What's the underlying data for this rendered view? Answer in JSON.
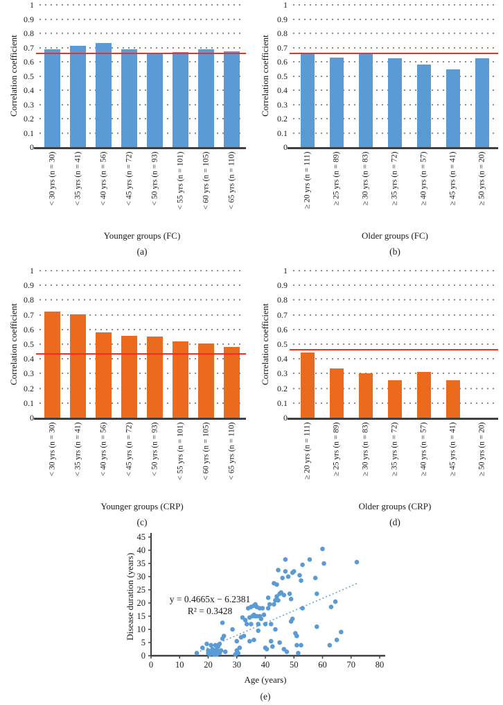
{
  "figure_caption_labels": [
    "(a)",
    "(b)",
    "(c)",
    "(d)",
    "(e)"
  ],
  "colors": {
    "blue_bar": "#5B9BD5",
    "orange_bar": "#EC6A1E",
    "reference_line": "#FB2B20",
    "axis": "#3F3F3F",
    "grid_dot": "#8C8C8C",
    "text": "#1A1A1A",
    "scatter_point": "#5B9BD5",
    "trendline": "#5B9BD5"
  },
  "chart_data": [
    {
      "panel": "a",
      "type": "bar",
      "xlabel": "Younger groups (FC)",
      "ylabel": "Correlation coefficient",
      "caption": "(a)",
      "ylim": [
        0,
        1
      ],
      "yticks": [
        "0",
        "0.1",
        "0.2",
        "0.3",
        "0.4",
        "0.5",
        "0.6",
        "0.7",
        "0.8",
        "0.9",
        "1"
      ],
      "grid": "dotted",
      "bar_color": "#5B9BD5",
      "categories": [
        "< 30 yrs (n = 30)",
        "< 35 yrs (n = 41)",
        "< 40 yrs (n = 56)",
        "< 45 yrs (n = 72)",
        "< 50 yrs (n = 93)",
        "< 55 yrs (n = 101)",
        "< 60 yrs (n = 105)",
        "< 65 yrs (n = 110)"
      ],
      "values": [
        0.69,
        0.71,
        0.73,
        0.69,
        0.665,
        0.67,
        0.69,
        0.675
      ],
      "reference_line": 0.66
    },
    {
      "panel": "b",
      "type": "bar",
      "xlabel": "Older groups (FC)",
      "ylabel": "Correlation coefficient",
      "caption": "(b)",
      "ylim": [
        0,
        1
      ],
      "yticks": [
        "0",
        "0.1",
        "0.2",
        "0.3",
        "0.4",
        "0.5",
        "0.6",
        "0.7",
        "0.8",
        "0.9",
        "1"
      ],
      "grid": "dotted",
      "bar_color": "#5B9BD5",
      "categories": [
        "≥ 20 yrs (n = 111)",
        "≥ 25 yrs (n = 89)",
        "≥ 30 yrs (n = 83)",
        "≥ 35 yrs (n = 72)",
        "≥ 40 yrs (n = 57)",
        "≥ 45 yrs (n = 41)",
        "≥ 50 yrs (n = 20)"
      ],
      "values": [
        0.66,
        0.63,
        0.66,
        0.625,
        0.58,
        0.545,
        0.625
      ],
      "reference_line": 0.66
    },
    {
      "panel": "c",
      "type": "bar",
      "xlabel": "Younger groups (CRP)",
      "ylabel": "Correlation coefficient",
      "caption": "(c)",
      "ylim": [
        0,
        1
      ],
      "yticks": [
        "0",
        "0.1",
        "0.2",
        "0.3",
        "0.4",
        "0.5",
        "0.6",
        "0.7",
        "0.8",
        "0.9",
        "1"
      ],
      "grid": "dotted",
      "bar_color": "#EC6A1E",
      "categories": [
        "< 30 yrs (n = 30)",
        "< 35 yrs (n = 41)",
        "< 40 yrs (n = 56)",
        "< 45 yrs (n = 72)",
        "< 50 yrs (n = 93)",
        "< 55 yrs (n = 101)",
        "< 60 yrs (n = 105)",
        "< 65 yrs (n = 110)"
      ],
      "values": [
        0.72,
        0.705,
        0.58,
        0.555,
        0.55,
        0.52,
        0.505,
        0.48
      ],
      "reference_line": 0.435
    },
    {
      "panel": "d",
      "type": "bar",
      "xlabel": "Older groups (CRP)",
      "ylabel": "Correlation coefficient",
      "caption": "(d)",
      "ylim": [
        0,
        1
      ],
      "yticks": [
        "0",
        "0.1",
        "0.2",
        "0.3",
        "0.4",
        "0.5",
        "0.6",
        "0.7",
        "0.8",
        "0.9",
        "1"
      ],
      "grid": "dotted",
      "bar_color": "#EC6A1E",
      "categories": [
        "≥ 20 yrs (n = 111)",
        "≥ 25 yrs (n = 89)",
        "≥ 30 yrs (n = 83)",
        "≥ 35 yrs (n = 72)",
        "≥ 40 yrs (n = 57)",
        "≥ 45 yrs (n = 41)",
        "≥ 50 yrs (n = 20)"
      ],
      "values": [
        0.445,
        0.335,
        0.3,
        0.255,
        0.31,
        0.255,
        0
      ],
      "reference_line": 0.46
    },
    {
      "panel": "e",
      "type": "scatter",
      "xlabel": "Age (years)",
      "ylabel": "Disease duration (years)",
      "caption": "(e)",
      "xlim": [
        0,
        80
      ],
      "ylim": [
        0,
        45
      ],
      "xticks": [
        "0",
        "10",
        "20",
        "30",
        "40",
        "50",
        "60",
        "70",
        "80"
      ],
      "yticks": [
        "0",
        "5",
        "10",
        "15",
        "20",
        "25",
        "30",
        "35",
        "40",
        "45"
      ],
      "grid": "off",
      "point_color": "#5B9BD5",
      "annotation_line1": "y = 0.4665x − 6.2381",
      "annotation_line2": "R² = 0.3428",
      "trendline": {
        "x_start": 16,
        "y_start": 1.2,
        "x_end": 72.5,
        "y_end": 27.6,
        "style": "dotted"
      },
      "points": [
        [
          16,
          1
        ],
        [
          18,
          3
        ],
        [
          19.5,
          4.5
        ],
        [
          20,
          2
        ],
        [
          20,
          1
        ],
        [
          20.5,
          0.5
        ],
        [
          21,
          4
        ],
        [
          21,
          1
        ],
        [
          21.5,
          2.5
        ],
        [
          22,
          1
        ],
        [
          22,
          0.5
        ],
        [
          22.5,
          4
        ],
        [
          22.5,
          2
        ],
        [
          22.5,
          1
        ],
        [
          23,
          2.5
        ],
        [
          23,
          0.5
        ],
        [
          23.5,
          1.5
        ],
        [
          23.5,
          3.5
        ],
        [
          24,
          4.5
        ],
        [
          24,
          1
        ],
        [
          24.5,
          2
        ],
        [
          25,
          6.5
        ],
        [
          25,
          12.5
        ],
        [
          25.5,
          7.5
        ],
        [
          26,
          1.5
        ],
        [
          28.5,
          10
        ],
        [
          29.5,
          0.5
        ],
        [
          30,
          2
        ],
        [
          30,
          5.5
        ],
        [
          30.5,
          1
        ],
        [
          31,
          3
        ],
        [
          31.5,
          7
        ],
        [
          32,
          14.5
        ],
        [
          32.5,
          7.5
        ],
        [
          33,
          13.5
        ],
        [
          33.5,
          12
        ],
        [
          34,
          18
        ],
        [
          34.5,
          14.5
        ],
        [
          34.5,
          5.5
        ],
        [
          35,
          18.5
        ],
        [
          35,
          12
        ],
        [
          35.5,
          15
        ],
        [
          36,
          19
        ],
        [
          36,
          15.5
        ],
        [
          36,
          6
        ],
        [
          36.5,
          19.5
        ],
        [
          36.5,
          15
        ],
        [
          37,
          18.5
        ],
        [
          37,
          15
        ],
        [
          37.5,
          12
        ],
        [
          37.5,
          9.5
        ],
        [
          38,
          18
        ],
        [
          38,
          15
        ],
        [
          38.5,
          14
        ],
        [
          39,
          18
        ],
        [
          39.5,
          15.5
        ],
        [
          40,
          12
        ],
        [
          40,
          3
        ],
        [
          40.5,
          2.5
        ],
        [
          41,
          22
        ],
        [
          41,
          18
        ],
        [
          41.5,
          19.5
        ],
        [
          42,
          12
        ],
        [
          42,
          5.5
        ],
        [
          42.5,
          3.5
        ],
        [
          43,
          27.5
        ],
        [
          43,
          19.5
        ],
        [
          43.5,
          21
        ],
        [
          43.5,
          10
        ],
        [
          44,
          27
        ],
        [
          44,
          22.5
        ],
        [
          44.5,
          21
        ],
        [
          44.5,
          32.5
        ],
        [
          45,
          23.5
        ],
        [
          45,
          5
        ],
        [
          45.5,
          24
        ],
        [
          46,
          29.5
        ],
        [
          46.5,
          23
        ],
        [
          46.5,
          2.5
        ],
        [
          47,
          36.5
        ],
        [
          47,
          32
        ],
        [
          47.5,
          1.5
        ],
        [
          48,
          30
        ],
        [
          48.5,
          23.5
        ],
        [
          49,
          21.5
        ],
        [
          49,
          13
        ],
        [
          49.5,
          14
        ],
        [
          49.5,
          31.5
        ],
        [
          50,
          32
        ],
        [
          50.5,
          8.5
        ],
        [
          51,
          7.5
        ],
        [
          51,
          4
        ],
        [
          51.5,
          1
        ],
        [
          52,
          30.5
        ],
        [
          52.5,
          28.5
        ],
        [
          52.5,
          4
        ],
        [
          53,
          34.5
        ],
        [
          53,
          18
        ],
        [
          55.5,
          36.5
        ],
        [
          57.5,
          29.5
        ],
        [
          58,
          23.5
        ],
        [
          58,
          11
        ],
        [
          60,
          40.5
        ],
        [
          60.5,
          35
        ],
        [
          62.5,
          4
        ],
        [
          63,
          18.5
        ],
        [
          64.5,
          20.5
        ],
        [
          65,
          6
        ],
        [
          66.5,
          9
        ],
        [
          72,
          35.5
        ]
      ]
    }
  ]
}
